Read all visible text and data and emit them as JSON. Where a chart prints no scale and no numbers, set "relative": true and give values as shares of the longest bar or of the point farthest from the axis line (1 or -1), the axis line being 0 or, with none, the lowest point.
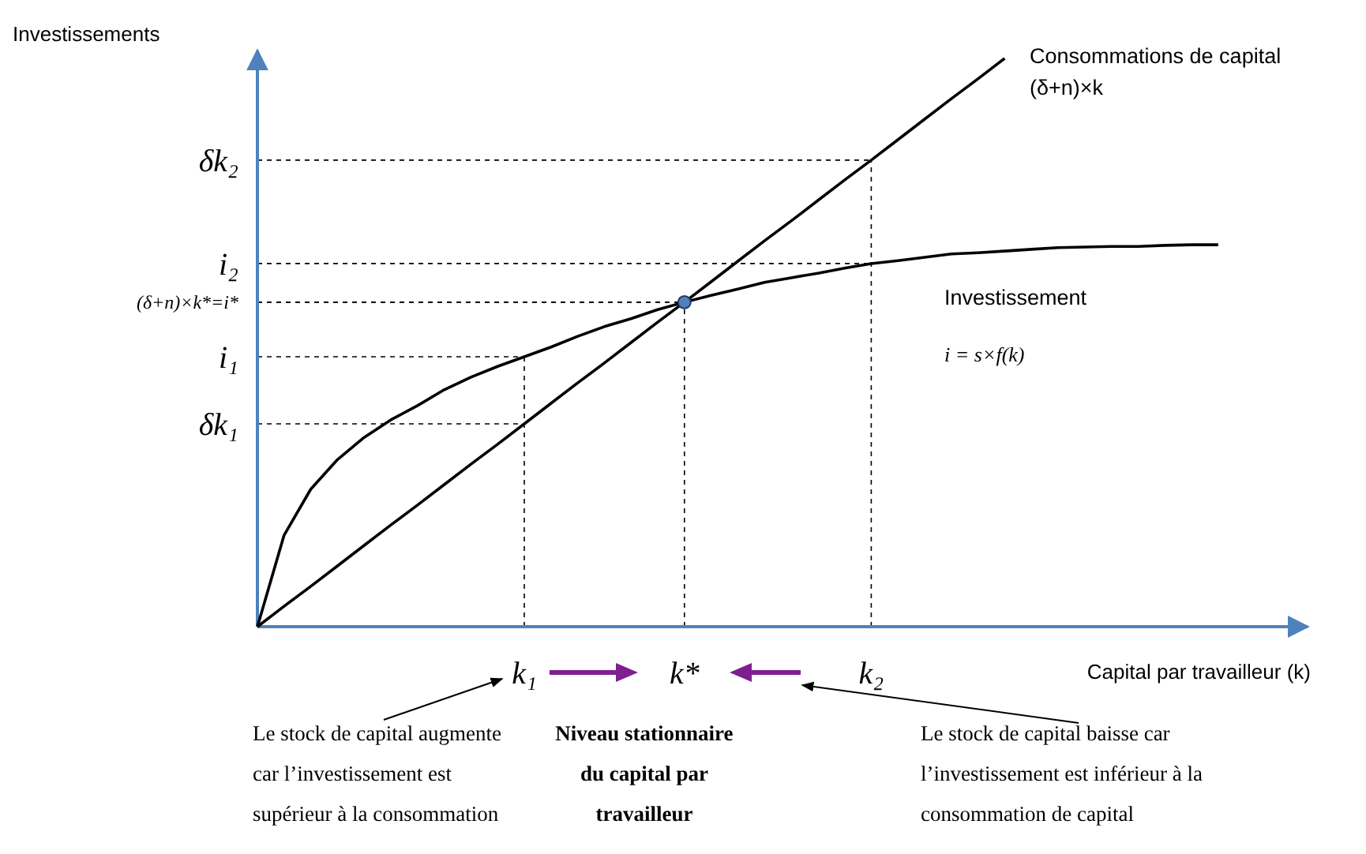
{
  "chart_data": {
    "type": "line",
    "relative": true,
    "xlabel": "Capital par travailleur (k)",
    "ylabel": "Investissements",
    "legend": false,
    "categories": [
      null,
      null,
      null,
      null,
      null,
      null,
      null,
      null,
      null,
      null,
      "k₁",
      null,
      null,
      null,
      null,
      null,
      "k*",
      null,
      null,
      null,
      null,
      null,
      null,
      "k₂",
      null,
      null,
      null,
      null,
      null,
      null,
      null,
      null,
      null,
      null,
      null,
      null,
      null
    ],
    "series": [
      {
        "name": "Consommations de capital (δ+n)×k",
        "color": "#000000",
        "values": [
          0,
          0.036,
          0.071,
          0.107,
          0.143,
          0.179,
          0.214,
          0.25,
          0.286,
          0.321,
          0.357,
          0.393,
          0.429,
          0.464,
          0.5,
          0.536,
          0.571,
          0.607,
          0.643,
          0.679,
          0.714,
          0.75,
          0.786,
          0.821,
          0.857,
          0.893,
          0.929,
          0.964,
          1,
          null,
          null,
          null,
          null,
          null,
          null,
          null,
          null
        ]
      },
      {
        "name": "Investissement",
        "color": "#000000",
        "values": [
          0,
          0.161,
          0.242,
          0.294,
          0.333,
          0.364,
          0.389,
          0.417,
          0.439,
          0.458,
          0.475,
          0.492,
          0.511,
          0.528,
          0.542,
          0.558,
          0.571,
          0.583,
          0.594,
          0.606,
          0.614,
          0.622,
          0.631,
          0.639,
          0.644,
          0.65,
          0.656,
          0.658,
          0.661,
          0.664,
          0.667,
          0.668,
          0.669,
          0.669,
          0.671,
          0.672,
          0.672
        ]
      },
      {
        "type": "scatter",
        "color": "#4f81bd",
        "marker": "circle",
        "values": [
          null,
          null,
          null,
          null,
          null,
          null,
          null,
          null,
          null,
          null,
          null,
          null,
          null,
          null,
          null,
          null,
          0.571,
          null,
          null,
          null,
          null,
          null,
          null,
          null,
          null,
          null,
          null,
          null,
          null,
          null,
          null,
          null,
          null,
          null,
          null,
          null,
          null
        ]
      }
    ],
    "annotations": [
      "δk₂",
      "i₂",
      "(δ+n)×k*=i*",
      "i₁",
      "δk₁",
      "i = s×f(k)",
      "Le stock de capital augmente car l’investissement est supérieur à la consommation",
      "Niveau stationnaire du capital par travailleur",
      "Le stock de capital baisse car l’investissement est inférieur à la consommation de capital"
    ]
  }
}
